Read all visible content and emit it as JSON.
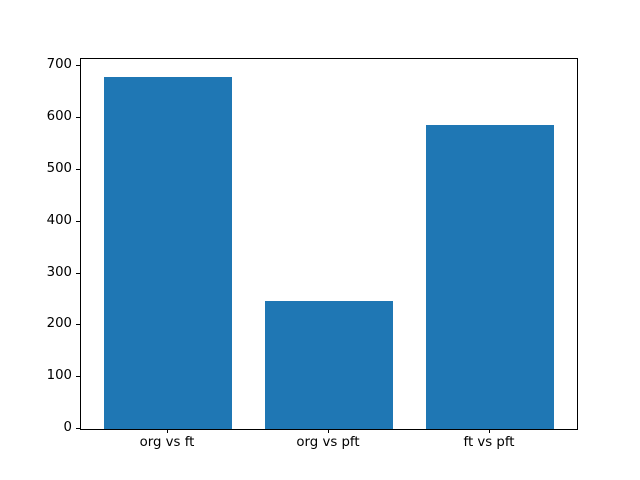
{
  "chart_data": {
    "type": "bar",
    "categories": [
      "org vs ft",
      "org vs pft",
      "ft vs pft"
    ],
    "values": [
      680,
      248,
      587
    ],
    "title": "",
    "xlabel": "",
    "ylabel": "",
    "yticks": [
      0,
      100,
      200,
      300,
      400,
      500,
      600,
      700
    ],
    "ylim": [
      0,
      714
    ],
    "xlim": [
      -0.54,
      2.54
    ],
    "bar_width": 0.8,
    "bar_color": "#1f77b4",
    "axes_edge_color": "#000000",
    "background_color": "#ffffff",
    "grid": false,
    "legend": false
  }
}
